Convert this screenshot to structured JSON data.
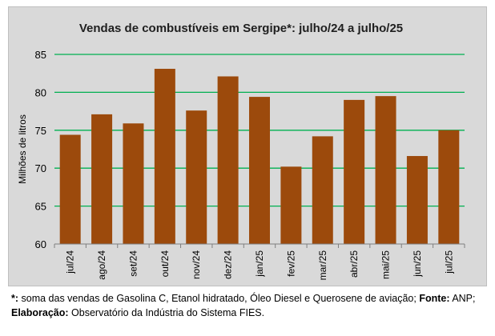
{
  "chart_data": {
    "type": "bar",
    "title": "Vendas de combustíveis em Sergipe*: julho/24 a julho/25",
    "xlabel": "",
    "ylabel": "Milhões de litros",
    "ylim": [
      60,
      85
    ],
    "yticks": [
      60,
      65,
      70,
      75,
      80,
      85
    ],
    "grid": true,
    "categories": [
      "jul/24",
      "ago/24",
      "set/24",
      "out/24",
      "nov/24",
      "dez/24",
      "jan/25",
      "fev/25",
      "mar/25",
      "abr/25",
      "mai/25",
      "jun/25",
      "jul/25"
    ],
    "values": [
      74.4,
      77.1,
      75.9,
      83.1,
      77.6,
      82.1,
      79.4,
      70.2,
      74.2,
      79.0,
      79.5,
      71.6,
      75.0
    ],
    "bar_color": "#9c4a0c",
    "grid_color": "#00b050"
  },
  "footnote": {
    "line1_bold": "*:",
    "line1_text": " soma das vendas de Gasolina C, Etanol hidratado, Óleo Diesel e Querosene de aviação;",
    "source_label": " Fonte:",
    "source_text": " ANP;",
    "line2_bold": "Elaboração:",
    "line2_text": " Observatório da Indústria do Sistema FIES."
  }
}
